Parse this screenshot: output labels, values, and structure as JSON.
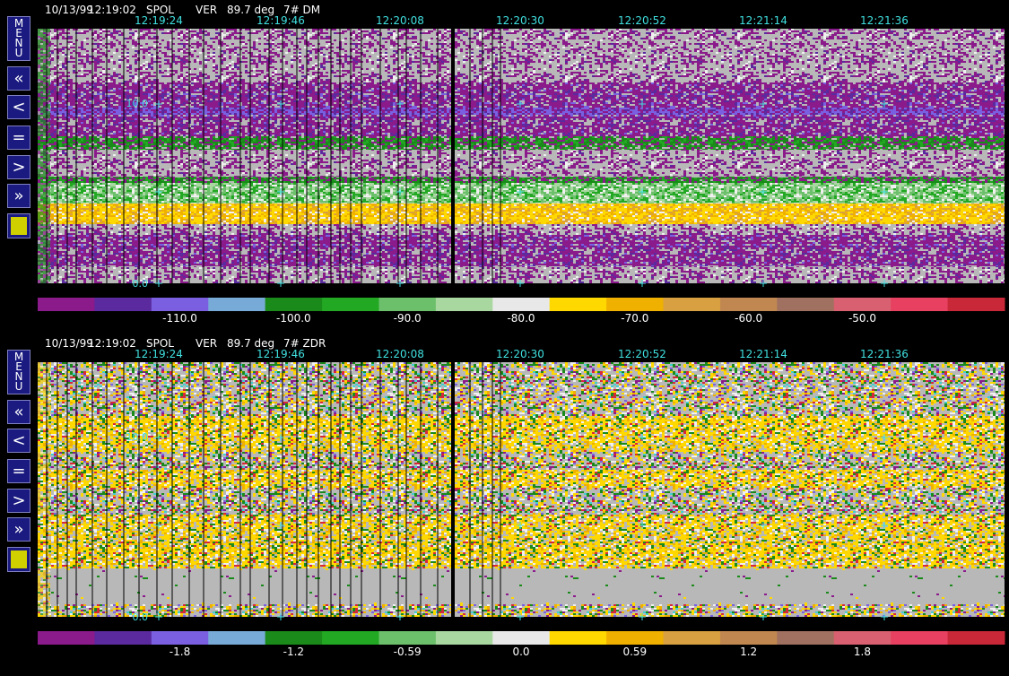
{
  "menu": {
    "label": "MENU",
    "buttons": [
      "«",
      "<",
      "=",
      ">",
      "»"
    ]
  },
  "panels": [
    {
      "header": {
        "date": "10/13/99",
        "time": "12:19:02",
        "radar": "SPOL",
        "mode": "VER",
        "angle": "89.7 deg",
        "field": "7# DM"
      },
      "times": [
        "12:19:24",
        "12:19:46",
        "12:20:08",
        "12:20:30",
        "12:20:52",
        "12:21:14",
        "12:21:36"
      ],
      "y_labels": [
        "10.0",
        "0.0"
      ],
      "colorbar_labels": [
        "-110.0",
        "-100.0",
        "-90.0",
        "-80.0",
        "-70.0",
        "-60.0",
        "-50.0"
      ]
    },
    {
      "header": {
        "date": "10/13/99",
        "time": "12:19:02",
        "radar": "SPOL",
        "mode": "VER",
        "angle": "89.7 deg",
        "field": "7# ZDR"
      },
      "times": [
        "12:19:24",
        "12:19:46",
        "12:20:08",
        "12:20:30",
        "12:20:52",
        "12:21:14",
        "12:21:36"
      ],
      "y_labels": [
        "10.0",
        "0.0"
      ],
      "colorbar_labels": [
        "-1.8",
        "-1.2",
        "-0.59",
        "0.0",
        "0.59",
        "1.2",
        "1.8"
      ]
    }
  ],
  "colorbar_colors": [
    "#8b1a8b",
    "#5a2a9e",
    "#7a60e0",
    "#78aad8",
    "#1a8a1a",
    "#22a822",
    "#6cc06c",
    "#a8d8a0",
    "#e8e8e8",
    "#ffd800",
    "#f0b000",
    "#d8a040",
    "#c08850",
    "#a07060",
    "#d86070",
    "#e84060",
    "#c82838"
  ]
}
